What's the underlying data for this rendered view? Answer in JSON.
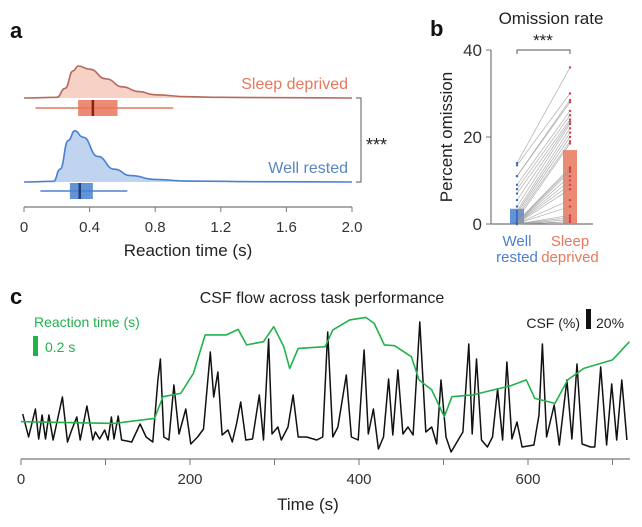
{
  "colors": {
    "sleep_deprived": "#e8775c",
    "sleep_deprived_line": "#b56a5e",
    "sleep_deprived_median": "#8a1f14",
    "well_rested": "#4a80d0",
    "well_rested_median": "#1f3f7a",
    "reaction_time": "#22b24c",
    "csf": "#111111",
    "pairs": "#9a9a9a"
  },
  "chart_data": [
    {
      "panel": "a",
      "type": "area",
      "xlabel": "Reaction time (s)",
      "xlim": [
        0,
        2.0
      ],
      "xticks": [
        "0",
        "0.4",
        "0.8",
        "1.2",
        "1.6",
        "2.0"
      ],
      "significance": "***",
      "series": [
        {
          "name": "Sleep deprived",
          "density": [
            [
              0,
              0
            ],
            [
              0.2,
              0.02
            ],
            [
              0.25,
              0.3
            ],
            [
              0.3,
              0.85
            ],
            [
              0.33,
              1.0
            ],
            [
              0.4,
              0.9
            ],
            [
              0.5,
              0.6
            ],
            [
              0.6,
              0.35
            ],
            [
              0.7,
              0.2
            ],
            [
              0.8,
              0.1
            ],
            [
              1.0,
              0.04
            ],
            [
              1.2,
              0.02
            ],
            [
              1.6,
              0.01
            ],
            [
              2.0,
              0
            ]
          ],
          "box": {
            "whisker_low": 0.07,
            "q1": 0.33,
            "median": 0.42,
            "q3": 0.57,
            "whisker_high": 0.91
          }
        },
        {
          "name": "Well rested",
          "density": [
            [
              0,
              0
            ],
            [
              0.18,
              0.02
            ],
            [
              0.22,
              0.4
            ],
            [
              0.27,
              1.3
            ],
            [
              0.31,
              1.6
            ],
            [
              0.36,
              1.4
            ],
            [
              0.45,
              0.8
            ],
            [
              0.55,
              0.4
            ],
            [
              0.65,
              0.2
            ],
            [
              0.8,
              0.08
            ],
            [
              1.0,
              0.03
            ],
            [
              1.4,
              0.01
            ],
            [
              2.0,
              0
            ]
          ],
          "box": {
            "whisker_low": 0.1,
            "q1": 0.28,
            "median": 0.34,
            "q3": 0.42,
            "whisker_high": 0.63
          }
        }
      ]
    },
    {
      "panel": "b",
      "type": "bar",
      "title": "Omission rate",
      "ylabel": "Percent omission",
      "ylim": [
        0,
        40
      ],
      "yticks": [
        "0",
        "20",
        "40"
      ],
      "categories": [
        [
          "Well",
          "rested"
        ],
        [
          "Sleep",
          "deprived"
        ]
      ],
      "values": [
        3.5,
        17
      ],
      "significance": "***",
      "pairs": [
        [
          14,
          36
        ],
        [
          13.5,
          30
        ],
        [
          11,
          28.5
        ],
        [
          11,
          28
        ],
        [
          9,
          26
        ],
        [
          8,
          25
        ],
        [
          7,
          24
        ],
        [
          5.5,
          23.5
        ],
        [
          4,
          23
        ],
        [
          3,
          22
        ],
        [
          2.5,
          21
        ],
        [
          2,
          20
        ],
        [
          1.5,
          19
        ],
        [
          1,
          18.5
        ],
        [
          0.5,
          13
        ],
        [
          0.5,
          12.5
        ],
        [
          0.3,
          12
        ],
        [
          0.3,
          11
        ],
        [
          0.2,
          10
        ],
        [
          0.2,
          9
        ],
        [
          0.1,
          8
        ],
        [
          0.1,
          5.5
        ],
        [
          0.1,
          4
        ],
        [
          0,
          2
        ],
        [
          0,
          1.5
        ],
        [
          0,
          1
        ],
        [
          0,
          0.5
        ],
        [
          0,
          0.5
        ]
      ]
    },
    {
      "panel": "c",
      "type": "line",
      "title": "CSF flow across task performance",
      "xlabel": "Time (s)",
      "xlim": [
        0,
        725
      ],
      "xticks": [
        "0",
        "200",
        "400",
        "600"
      ],
      "rt_label": "Reaction time (s)",
      "rt_scale_label": "0.2 s",
      "csf_label": "CSF (%)",
      "csf_scale_label": "20%",
      "reaction_time": [
        [
          0,
          0.3
        ],
        [
          111,
          0.293
        ],
        [
          158,
          0.313
        ],
        [
          168,
          0.4
        ],
        [
          189,
          0.413
        ],
        [
          204,
          0.493
        ],
        [
          218,
          0.647
        ],
        [
          243,
          0.647
        ],
        [
          257,
          0.669
        ],
        [
          267,
          0.607
        ],
        [
          287,
          0.62
        ],
        [
          299,
          0.68
        ],
        [
          311,
          0.6
        ],
        [
          318,
          0.513
        ],
        [
          328,
          0.593
        ],
        [
          360,
          0.6
        ],
        [
          369,
          0.667
        ],
        [
          389,
          0.707
        ],
        [
          408,
          0.717
        ],
        [
          418,
          0.693
        ],
        [
          430,
          0.607
        ],
        [
          442,
          0.604
        ],
        [
          462,
          0.56
        ],
        [
          471,
          0.467
        ],
        [
          486,
          0.427
        ],
        [
          501,
          0.32
        ],
        [
          510,
          0.4
        ],
        [
          535,
          0.407
        ],
        [
          559,
          0.427
        ],
        [
          579,
          0.443
        ],
        [
          598,
          0.467
        ],
        [
          608,
          0.393
        ],
        [
          632,
          0.373
        ],
        [
          647,
          0.467
        ],
        [
          666,
          0.513
        ],
        [
          686,
          0.533
        ],
        [
          700,
          0.547
        ],
        [
          720,
          0.62
        ]
      ],
      "csf": [
        [
          2,
          38
        ],
        [
          9,
          15
        ],
        [
          17,
          43
        ],
        [
          21,
          13
        ],
        [
          25,
          37
        ],
        [
          29,
          13
        ],
        [
          33,
          37
        ],
        [
          38,
          12
        ],
        [
          49,
          55
        ],
        [
          55,
          10
        ],
        [
          60,
          22
        ],
        [
          66,
          35
        ],
        [
          70,
          12
        ],
        [
          78,
          46
        ],
        [
          85,
          12
        ],
        [
          88,
          20
        ],
        [
          93,
          13
        ],
        [
          99,
          22
        ],
        [
          103,
          12
        ],
        [
          107,
          35
        ],
        [
          110,
          13
        ],
        [
          115,
          36
        ],
        [
          119,
          12
        ],
        [
          131,
          10
        ],
        [
          141,
          28
        ],
        [
          148,
          15
        ],
        [
          156,
          10
        ],
        [
          162,
          72
        ],
        [
          165,
          93
        ],
        [
          169,
          15
        ],
        [
          175,
          12
        ],
        [
          181,
          67
        ],
        [
          187,
          18
        ],
        [
          195,
          43
        ],
        [
          201,
          8
        ],
        [
          209,
          15
        ],
        [
          216,
          23
        ],
        [
          224,
          100
        ],
        [
          228,
          55
        ],
        [
          233,
          80
        ],
        [
          238,
          17
        ],
        [
          245,
          22
        ],
        [
          250,
          10
        ],
        [
          255,
          28
        ],
        [
          260,
          50
        ],
        [
          266,
          12
        ],
        [
          274,
          13
        ],
        [
          282,
          57
        ],
        [
          287,
          12
        ],
        [
          293,
          113
        ],
        [
          297,
          18
        ],
        [
          304,
          25
        ],
        [
          308,
          12
        ],
        [
          316,
          25
        ],
        [
          322,
          57
        ],
        [
          328,
          15
        ],
        [
          338,
          15
        ],
        [
          350,
          12
        ],
        [
          357,
          15
        ],
        [
          363,
          120
        ],
        [
          369,
          15
        ],
        [
          375,
          25
        ],
        [
          385,
          77
        ],
        [
          391,
          15
        ],
        [
          399,
          12
        ],
        [
          406,
          102
        ],
        [
          411,
          18
        ],
        [
          417,
          43
        ],
        [
          423,
          3
        ],
        [
          429,
          15
        ],
        [
          435,
          73
        ],
        [
          440,
          17
        ],
        [
          446,
          82
        ],
        [
          452,
          18
        ],
        [
          458,
          25
        ],
        [
          464,
          17
        ],
        [
          472,
          130
        ],
        [
          479,
          20
        ],
        [
          486,
          25
        ],
        [
          492,
          8
        ],
        [
          497,
          72
        ],
        [
          503,
          15
        ],
        [
          509,
          0
        ],
        [
          516,
          10
        ],
        [
          523,
          20
        ],
        [
          530,
          108
        ],
        [
          534,
          18
        ],
        [
          539,
          93
        ],
        [
          545,
          12
        ],
        [
          552,
          5
        ],
        [
          558,
          15
        ],
        [
          564,
          63
        ],
        [
          570,
          12
        ],
        [
          575,
          90
        ],
        [
          581,
          13
        ],
        [
          587,
          30
        ],
        [
          593,
          5
        ],
        [
          607,
          7
        ],
        [
          613,
          37
        ],
        [
          617,
          108
        ],
        [
          622,
          15
        ],
        [
          631,
          47
        ],
        [
          637,
          7
        ],
        [
          646,
          72
        ],
        [
          652,
          13
        ],
        [
          658,
          88
        ],
        [
          664,
          8
        ],
        [
          674,
          5
        ],
        [
          679,
          5
        ],
        [
          686,
          85
        ],
        [
          693,
          7
        ],
        [
          699,
          68
        ],
        [
          705,
          12
        ],
        [
          711,
          72
        ],
        [
          717,
          12
        ]
      ]
    }
  ],
  "panel_labels": {
    "a": "a",
    "b": "b",
    "c": "c"
  }
}
